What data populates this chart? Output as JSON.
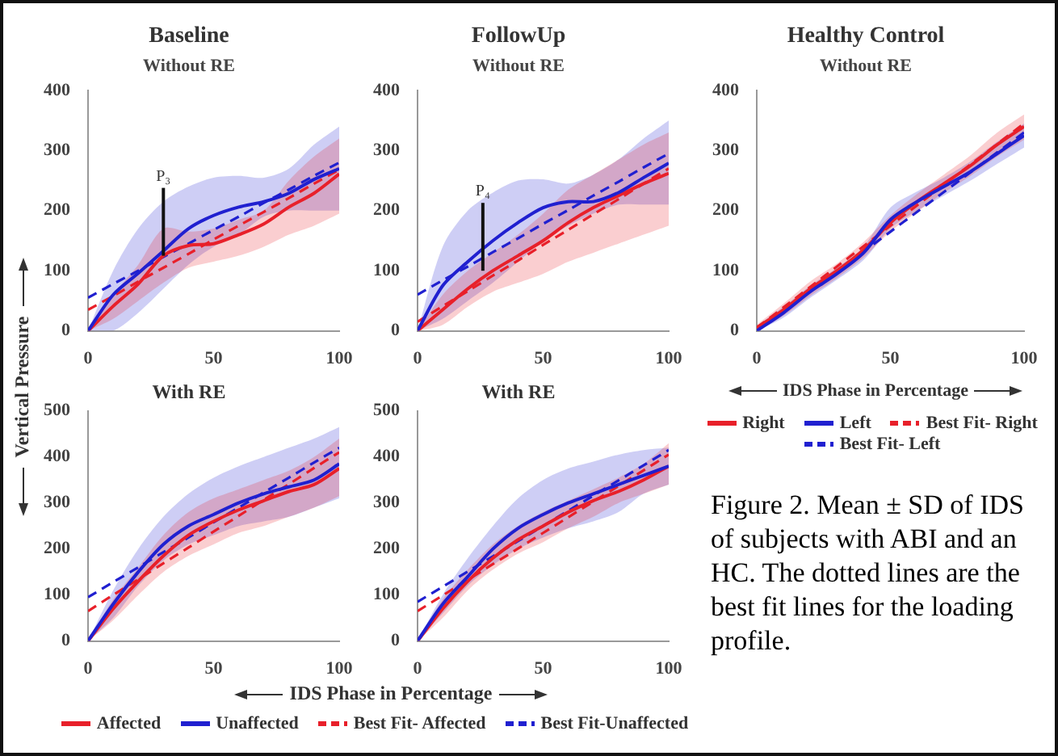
{
  "chart_data": [
    {
      "type": "line",
      "title": "Baseline",
      "subtitle": "Without RE",
      "ylabel": "Vertical Pressure",
      "x": [
        0,
        10,
        20,
        30,
        40,
        50,
        60,
        70,
        80,
        90,
        100
      ],
      "xlim": [
        0,
        100
      ],
      "xticks": [
        0,
        50,
        100
      ],
      "ylim": [
        0,
        400
      ],
      "yticks": [
        0,
        100,
        200,
        300,
        400
      ],
      "annotations": [
        {
          "text": "P₃",
          "x": 30,
          "y": 125
        }
      ],
      "series": [
        {
          "color": "#e8202a",
          "values": [
            0,
            41,
            78,
            125,
            142,
            145,
            160,
            178,
            206,
            229,
            261
          ],
          "lower": [
            0,
            20,
            50,
            80,
            105,
            115,
            125,
            140,
            160,
            175,
            195
          ],
          "upper": [
            0,
            60,
            110,
            170,
            165,
            170,
            185,
            200,
            250,
            290,
            320
          ]
        },
        {
          "color": "#2020d0",
          "values": [
            0,
            60,
            96,
            133,
            170,
            192,
            206,
            215,
            229,
            252,
            270
          ],
          "lower": [
            0,
            0,
            30,
            70,
            110,
            140,
            160,
            190,
            200,
            200,
            200
          ],
          "upper": [
            0,
            100,
            170,
            215,
            240,
            255,
            258,
            255,
            270,
            310,
            340
          ]
        },
        {
          "color": "#e8202a",
          "line_style": "dashed",
          "values": [
            35,
            58,
            82,
            105,
            128,
            152,
            175,
            198,
            221,
            245,
            268
          ]
        },
        {
          "color": "#2020d0",
          "line_style": "dashed",
          "values": [
            55,
            78,
            100,
            123,
            145,
            168,
            190,
            213,
            235,
            258,
            280
          ]
        }
      ]
    },
    {
      "type": "line",
      "title": "FollowUp",
      "subtitle": "Without RE",
      "x": [
        0,
        10,
        20,
        30,
        40,
        50,
        60,
        70,
        80,
        90,
        100
      ],
      "xlim": [
        0,
        100
      ],
      "xticks": [
        0,
        50,
        100
      ],
      "ylim": [
        0,
        400
      ],
      "yticks": [
        0,
        100,
        200,
        300,
        400
      ],
      "annotations": [
        {
          "text": "P₄",
          "x": 26,
          "y": 100
        }
      ],
      "series": [
        {
          "color": "#e8202a",
          "values": [
            0,
            35,
            70,
            100,
            125,
            150,
            180,
            205,
            225,
            245,
            262
          ],
          "lower": [
            0,
            10,
            40,
            65,
            80,
            95,
            115,
            130,
            145,
            160,
            175
          ],
          "upper": [
            0,
            60,
            100,
            130,
            160,
            195,
            235,
            260,
            285,
            310,
            330
          ]
        },
        {
          "color": "#2020d0",
          "values": [
            0,
            75,
            115,
            150,
            180,
            205,
            215,
            215,
            230,
            255,
            279
          ],
          "lower": [
            0,
            20,
            50,
            80,
            115,
            150,
            175,
            195,
            210,
            210,
            210
          ],
          "upper": [
            0,
            140,
            200,
            230,
            250,
            252,
            245,
            260,
            285,
            320,
            350
          ]
        },
        {
          "color": "#e8202a",
          "line_style": "dashed",
          "values": [
            15,
            41,
            66,
            92,
            117,
            143,
            168,
            194,
            219,
            245,
            270
          ]
        },
        {
          "color": "#2020d0",
          "line_style": "dashed",
          "values": [
            60,
            84,
            107,
            131,
            154,
            178,
            201,
            225,
            248,
            272,
            295
          ]
        }
      ]
    },
    {
      "type": "line",
      "title": "Healthy Control",
      "subtitle": "Without RE",
      "xlabel": "IDS Phase in Percentage",
      "legend": "bottom",
      "x": [
        0,
        10,
        20,
        30,
        40,
        50,
        60,
        70,
        80,
        90,
        100
      ],
      "xlim": [
        0,
        100
      ],
      "xticks": [
        0,
        50,
        100
      ],
      "ylim": [
        0,
        400
      ],
      "yticks": [
        0,
        100,
        200,
        300,
        400
      ],
      "annotations": [
        "Figure 2. Mean ± SD of IDS of subjects with ABI and an HC. The dotted lines are the best fit lines for the loading profile."
      ],
      "series": [
        {
          "name": "Right",
          "color": "#e8202a",
          "values": [
            5,
            35,
            70,
            100,
            135,
            180,
            215,
            245,
            275,
            310,
            340
          ],
          "lower": [
            0,
            25,
            58,
            88,
            122,
            165,
            198,
            230,
            258,
            290,
            318
          ],
          "upper": [
            10,
            45,
            82,
            112,
            148,
            192,
            228,
            260,
            292,
            330,
            360
          ]
        },
        {
          "name": "Left",
          "color": "#2020d0",
          "values": [
            0,
            30,
            65,
            95,
            130,
            185,
            215,
            240,
            265,
            295,
            325
          ],
          "lower": [
            0,
            22,
            55,
            85,
            118,
            170,
            200,
            225,
            250,
            278,
            305
          ],
          "upper": [
            8,
            40,
            75,
            105,
            140,
            205,
            232,
            255,
            282,
            315,
            345
          ]
        },
        {
          "name": "Best Fit- Right",
          "color": "#e8202a",
          "line_style": "dashed",
          "values": [
            5,
            39,
            73,
            107,
            141,
            175,
            209,
            243,
            277,
            311,
            345
          ]
        },
        {
          "name": "Best Fit- Left",
          "color": "#2020d0",
          "line_style": "dashed",
          "values": [
            0,
            33,
            66,
            99,
            132,
            165,
            198,
            231,
            264,
            297,
            330
          ]
        }
      ]
    },
    {
      "type": "line",
      "title": "With RE",
      "xlabel": "IDS Phase in Percentage",
      "legend": "bottom",
      "x": [
        0,
        10,
        20,
        30,
        40,
        50,
        60,
        70,
        80,
        90,
        100
      ],
      "xlim": [
        0,
        100
      ],
      "xticks": [
        0,
        50,
        100
      ],
      "ylim": [
        0,
        500
      ],
      "yticks": [
        0,
        100,
        200,
        300,
        400,
        500
      ],
      "series": [
        {
          "name": "Affected",
          "color": "#e8202a",
          "values": [
            0,
            70,
            130,
            185,
            230,
            260,
            285,
            305,
            325,
            340,
            375
          ],
          "lower": [
            0,
            45,
            100,
            150,
            185,
            210,
            235,
            250,
            270,
            290,
            315
          ],
          "upper": [
            0,
            90,
            160,
            230,
            280,
            310,
            330,
            350,
            370,
            400,
            440
          ]
        },
        {
          "name": "Unaffected",
          "color": "#2020d0",
          "values": [
            0,
            80,
            150,
            210,
            250,
            275,
            300,
            320,
            335,
            350,
            385
          ],
          "lower": [
            0,
            50,
            120,
            175,
            210,
            230,
            250,
            260,
            270,
            290,
            310
          ],
          "upper": [
            0,
            110,
            200,
            270,
            320,
            355,
            380,
            400,
            420,
            440,
            465
          ]
        },
        {
          "name": "Best Fit- Affected",
          "color": "#e8202a",
          "line_style": "dashed",
          "values": [
            65,
            100,
            134,
            169,
            203,
            238,
            272,
            307,
            341,
            376,
            410
          ]
        },
        {
          "name": "Best Fit-Unaffected",
          "color": "#2020d0",
          "line_style": "dashed",
          "values": [
            95,
            128,
            160,
            193,
            225,
            258,
            290,
            323,
            355,
            388,
            420
          ]
        }
      ]
    },
    {
      "type": "line",
      "title": "With RE",
      "x": [
        0,
        10,
        20,
        30,
        40,
        50,
        60,
        70,
        80,
        90,
        100
      ],
      "xlim": [
        0,
        100
      ],
      "xticks": [
        0,
        50,
        100
      ],
      "ylim": [
        0,
        500
      ],
      "yticks": [
        0,
        100,
        200,
        300,
        400,
        500
      ],
      "series": [
        {
          "color": "#e8202a",
          "values": [
            0,
            70,
            130,
            180,
            220,
            250,
            280,
            305,
            325,
            350,
            380
          ],
          "lower": [
            0,
            50,
            110,
            155,
            190,
            215,
            245,
            270,
            300,
            320,
            340
          ],
          "upper": [
            0,
            90,
            155,
            210,
            250,
            280,
            305,
            330,
            355,
            385,
            430
          ]
        },
        {
          "color": "#2020d0",
          "values": [
            0,
            80,
            140,
            200,
            245,
            275,
            300,
            320,
            340,
            360,
            380
          ],
          "lower": [
            0,
            60,
            120,
            165,
            200,
            225,
            245,
            260,
            280,
            320,
            340
          ],
          "upper": [
            0,
            100,
            180,
            250,
            310,
            350,
            375,
            390,
            405,
            415,
            420
          ]
        },
        {
          "color": "#e8202a",
          "line_style": "dashed",
          "values": [
            65,
            99,
            133,
            167,
            201,
            235,
            269,
            303,
            337,
            371,
            405
          ]
        },
        {
          "color": "#2020d0",
          "line_style": "dashed",
          "values": [
            85,
            118,
            151,
            184,
            217,
            250,
            283,
            316,
            349,
            382,
            415
          ]
        }
      ]
    }
  ]
}
